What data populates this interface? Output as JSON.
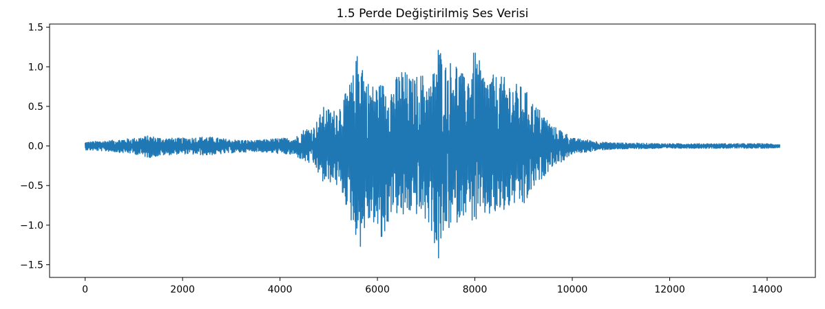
{
  "chart_data": {
    "type": "line",
    "title": "1.5 Perde Değiştirilmiş Ses Verisi",
    "xlabel": "",
    "ylabel": "",
    "xlim": [
      -730,
      14990
    ],
    "ylim": [
      -1.66,
      1.54
    ],
    "x_ticks": [
      0,
      2000,
      4000,
      6000,
      8000,
      10000,
      12000,
      14000
    ],
    "x_tick_labels": [
      "0",
      "2000",
      "4000",
      "6000",
      "8000",
      "10000",
      "12000",
      "14000"
    ],
    "y_ticks": [
      1.5,
      1.0,
      0.5,
      0.0,
      -0.5,
      -1.0,
      -1.5
    ],
    "y_tick_labels": [
      "1.5",
      "1.0",
      "0.5",
      "0.0",
      "−0.5",
      "−1.0",
      "−1.5"
    ],
    "grid": false,
    "series": [
      {
        "color": "#1f77b4",
        "x_start": 0,
        "x_end": 14260,
        "envelope": {
          "x": [
            0,
            500,
            1000,
            1300,
            1600,
            2000,
            2500,
            3000,
            3500,
            4000,
            4300,
            4500,
            4700,
            4900,
            5100,
            5300,
            5500,
            5650,
            5750,
            5900,
            6100,
            6300,
            6500,
            6700,
            6900,
            7100,
            7250,
            7400,
            7600,
            7800,
            8000,
            8200,
            8400,
            8600,
            8800,
            9000,
            9200,
            9400,
            9600,
            9800,
            10000,
            10300,
            10600,
            11000,
            12000,
            13000,
            14000,
            14260
          ],
          "upper": [
            0.05,
            0.07,
            0.1,
            0.13,
            0.1,
            0.1,
            0.12,
            0.08,
            0.07,
            0.1,
            0.1,
            0.22,
            0.25,
            0.5,
            0.45,
            0.6,
            0.9,
            1.38,
            0.85,
            0.78,
            0.8,
            0.78,
            1.0,
            0.85,
            0.93,
            0.8,
            1.32,
            1.05,
            1.12,
            0.85,
            1.23,
            0.9,
            0.9,
            0.87,
            0.8,
            0.75,
            0.55,
            0.42,
            0.25,
            0.2,
            0.1,
            0.08,
            0.05,
            0.04,
            0.03,
            0.03,
            0.03,
            0.02
          ],
          "lower": [
            -0.05,
            -0.07,
            -0.1,
            -0.15,
            -0.12,
            -0.1,
            -0.12,
            -0.09,
            -0.07,
            -0.1,
            -0.12,
            -0.2,
            -0.25,
            -0.5,
            -0.45,
            -0.65,
            -1.05,
            -1.29,
            -1.05,
            -0.95,
            -1.3,
            -0.8,
            -0.95,
            -0.85,
            -0.9,
            -1.05,
            -1.5,
            -1.1,
            -1.0,
            -0.85,
            -1.0,
            -0.9,
            -0.9,
            -0.85,
            -0.75,
            -0.8,
            -0.55,
            -0.4,
            -0.25,
            -0.2,
            -0.1,
            -0.08,
            -0.05,
            -0.04,
            -0.03,
            -0.03,
            -0.03,
            -0.02
          ]
        }
      }
    ]
  }
}
